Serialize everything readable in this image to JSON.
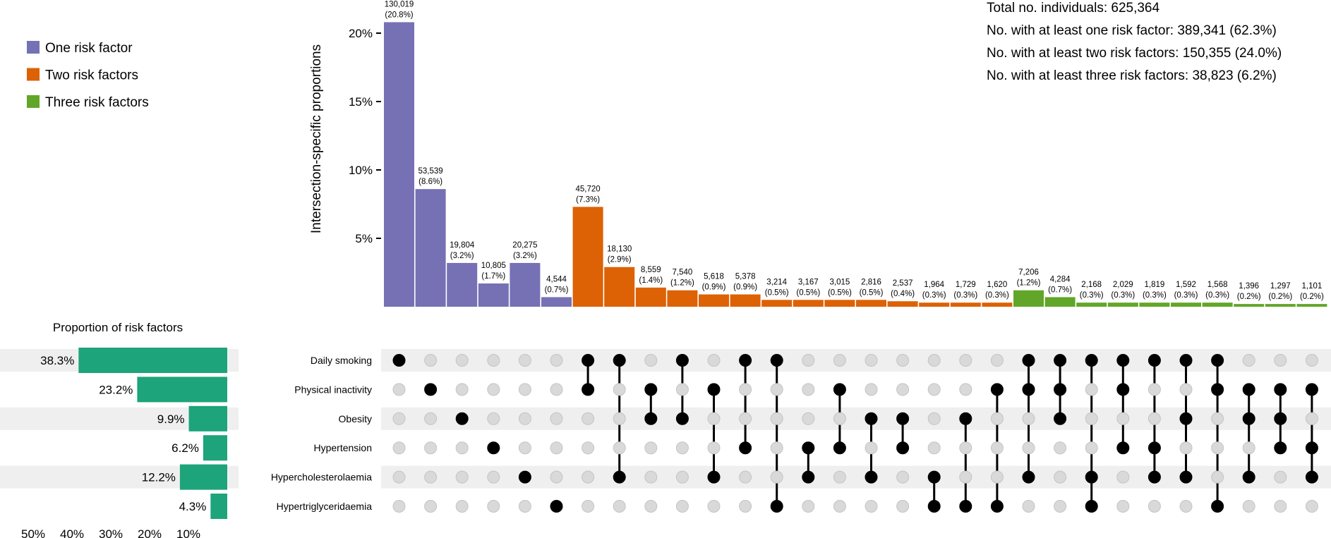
{
  "chart_data": {
    "type": "upset",
    "total_individuals": 625364,
    "summary_lines": [
      "Total no. individuals: 625,364",
      "No. with at least one risk factor: 389,341 (62.3%)",
      "No. with at least two risk factors: 150,355 (24.0%)",
      "No. with at least three risk factors: 38,823 (6.2%)"
    ],
    "legend": [
      {
        "label": "One risk factor",
        "color": "#7670b5"
      },
      {
        "label": "Two risk factors",
        "color": "#dd6105"
      },
      {
        "label": "Three risk factors",
        "color": "#61a628"
      }
    ],
    "ylabel": "Intersection-specific proportions",
    "y_ticks": [
      {
        "value": 5,
        "label": "5%"
      },
      {
        "value": 10,
        "label": "10%"
      },
      {
        "value": 15,
        "label": "15%"
      },
      {
        "value": 20,
        "label": "20%"
      }
    ],
    "ylim": [
      0,
      22
    ],
    "sets": [
      "Daily smoking",
      "Physical inactivity",
      "Obesity",
      "Hypertension",
      "Hypercholesterolaemia",
      "Hypertriglyceridaemia"
    ],
    "set_panel": {
      "title": "Proportion of risk factors",
      "values": [
        38.3,
        23.2,
        9.9,
        6.2,
        12.2,
        4.3
      ],
      "labels": [
        "38.3%",
        "23.2%",
        "9.9%",
        "6.2%",
        "12.2%",
        "4.3%"
      ],
      "x_ticks": [
        "50%",
        "40%",
        "30%",
        "20%",
        "10%"
      ],
      "x_tick_values": [
        50,
        40,
        30,
        20,
        10
      ],
      "bar_color": "#1da47a"
    },
    "intersections": [
      {
        "count": "130,019",
        "pct_label": "(20.8%)",
        "value": 20.8,
        "group": 0,
        "members": [
          0
        ]
      },
      {
        "count": "53,539",
        "pct_label": "(8.6%)",
        "value": 8.6,
        "group": 0,
        "members": [
          1
        ]
      },
      {
        "count": "19,804",
        "pct_label": "(3.2%)",
        "value": 3.2,
        "group": 0,
        "members": [
          2
        ]
      },
      {
        "count": "10,805",
        "pct_label": "(1.7%)",
        "value": 1.7,
        "group": 0,
        "members": [
          3
        ]
      },
      {
        "count": "20,275",
        "pct_label": "(3.2%)",
        "value": 3.2,
        "group": 0,
        "members": [
          4
        ]
      },
      {
        "count": "4,544",
        "pct_label": "(0.7%)",
        "value": 0.7,
        "group": 0,
        "members": [
          5
        ]
      },
      {
        "count": "45,720",
        "pct_label": "(7.3%)",
        "value": 7.3,
        "group": 1,
        "members": [
          0,
          1
        ]
      },
      {
        "count": "18,130",
        "pct_label": "(2.9%)",
        "value": 2.9,
        "group": 1,
        "members": [
          0,
          4
        ]
      },
      {
        "count": "8,559",
        "pct_label": "(1.4%)",
        "value": 1.4,
        "group": 1,
        "members": [
          1,
          2
        ]
      },
      {
        "count": "7,540",
        "pct_label": "(1.2%)",
        "value": 1.2,
        "group": 1,
        "members": [
          0,
          2
        ]
      },
      {
        "count": "5,618",
        "pct_label": "(0.9%)",
        "value": 0.9,
        "group": 1,
        "members": [
          1,
          4
        ]
      },
      {
        "count": "5,378",
        "pct_label": "(0.9%)",
        "value": 0.9,
        "group": 1,
        "members": [
          0,
          3
        ]
      },
      {
        "count": "3,214",
        "pct_label": "(0.5%)",
        "value": 0.5,
        "group": 1,
        "members": [
          0,
          5
        ]
      },
      {
        "count": "3,167",
        "pct_label": "(0.5%)",
        "value": 0.5,
        "group": 1,
        "members": [
          3,
          4
        ]
      },
      {
        "count": "3,015",
        "pct_label": "(0.5%)",
        "value": 0.5,
        "group": 1,
        "members": [
          1,
          3
        ]
      },
      {
        "count": "2,816",
        "pct_label": "(0.5%)",
        "value": 0.5,
        "group": 1,
        "members": [
          2,
          4
        ]
      },
      {
        "count": "2,537",
        "pct_label": "(0.4%)",
        "value": 0.4,
        "group": 1,
        "members": [
          2,
          3
        ]
      },
      {
        "count": "1,964",
        "pct_label": "(0.3%)",
        "value": 0.3,
        "group": 1,
        "members": [
          4,
          5
        ]
      },
      {
        "count": "1,729",
        "pct_label": "(0.3%)",
        "value": 0.3,
        "group": 1,
        "members": [
          2,
          5
        ]
      },
      {
        "count": "1,620",
        "pct_label": "(0.3%)",
        "value": 0.3,
        "group": 1,
        "members": [
          1,
          5
        ]
      },
      {
        "count": "7,206",
        "pct_label": "(1.2%)",
        "value": 1.2,
        "group": 2,
        "members": [
          0,
          1,
          4
        ]
      },
      {
        "count": "4,284",
        "pct_label": "(0.7%)",
        "value": 0.7,
        "group": 2,
        "members": [
          0,
          1,
          2
        ]
      },
      {
        "count": "2,168",
        "pct_label": "(0.3%)",
        "value": 0.3,
        "group": 2,
        "members": [
          0,
          4,
          5
        ]
      },
      {
        "count": "2,029",
        "pct_label": "(0.3%)",
        "value": 0.3,
        "group": 2,
        "members": [
          0,
          1,
          3
        ]
      },
      {
        "count": "1,819",
        "pct_label": "(0.3%)",
        "value": 0.3,
        "group": 2,
        "members": [
          0,
          3,
          4
        ]
      },
      {
        "count": "1,592",
        "pct_label": "(0.3%)",
        "value": 0.3,
        "group": 2,
        "members": [
          0,
          2,
          4
        ]
      },
      {
        "count": "1,568",
        "pct_label": "(0.3%)",
        "value": 0.3,
        "group": 2,
        "members": [
          0,
          1,
          5
        ]
      },
      {
        "count": "1,396",
        "pct_label": "(0.2%)",
        "value": 0.2,
        "group": 2,
        "members": [
          1,
          2,
          4
        ]
      },
      {
        "count": "1,297",
        "pct_label": "(0.2%)",
        "value": 0.2,
        "group": 2,
        "members": [
          1,
          2,
          3
        ]
      },
      {
        "count": "1,101",
        "pct_label": "(0.2%)",
        "value": 0.2,
        "group": 2,
        "members": [
          1,
          3,
          4
        ]
      }
    ]
  }
}
